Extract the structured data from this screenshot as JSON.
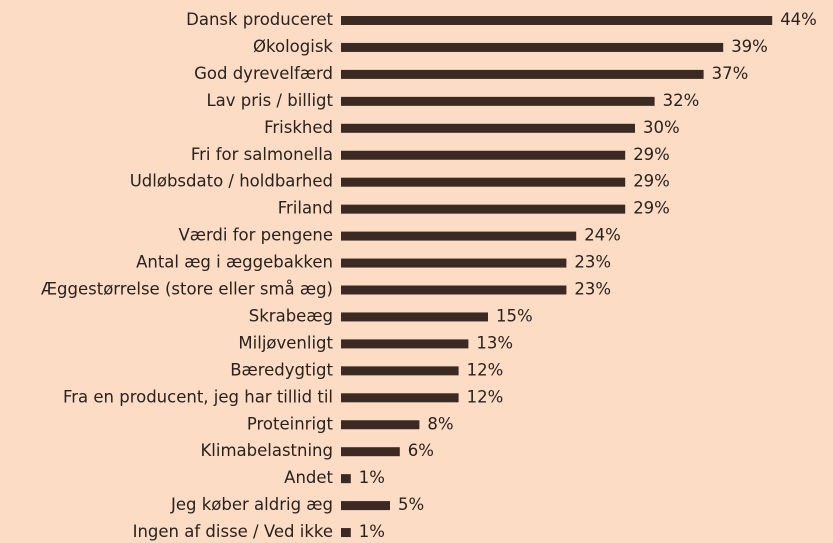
{
  "chart_data": {
    "type": "bar",
    "orientation": "horizontal",
    "color": "#3b2a23",
    "categories": [
      "Dansk produceret",
      "Økologisk",
      "God dyrevelfærd",
      "Lav pris / billigt",
      "Friskhed",
      "Fri for salmonella",
      "Udløbsdato / holdbarhed",
      "Friland",
      "Værdi for pengene",
      "Antal æg i æggebakken",
      "Æggestørrelse (store eller små æg)",
      "Skrabeæg",
      "Miljøvenligt",
      "Bæredygtigt",
      "Fra en producent, jeg har tillid til",
      "Proteinrigt",
      "Klimabelastning",
      "Andet",
      "Jeg køber aldrig æg",
      "Ingen af disse / Ved ikke"
    ],
    "values": [
      44,
      39,
      37,
      32,
      30,
      29,
      29,
      29,
      24,
      23,
      23,
      15,
      13,
      12,
      12,
      8,
      6,
      1,
      5,
      1
    ],
    "value_labels": [
      "44%",
      "39%",
      "37%",
      "32%",
      "30%",
      "29%",
      "29%",
      "29%",
      "24%",
      "23%",
      "23%",
      "15%",
      "13%",
      "12%",
      "12%",
      "8%",
      "6%",
      "1%",
      "5%",
      "1%"
    ]
  }
}
